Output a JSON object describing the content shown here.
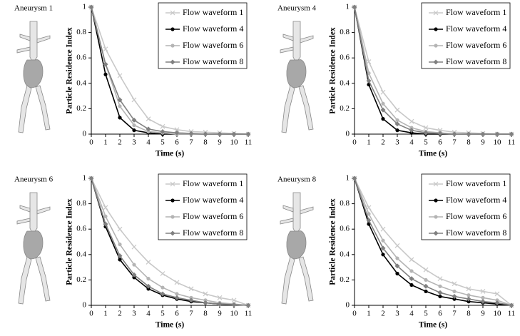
{
  "chart_data": [
    {
      "type": "line",
      "label": "Aneurysm 1",
      "xlabel": "Time (s)",
      "ylabel": "Particle Residence Index",
      "x": [
        0,
        1,
        2,
        3,
        4,
        5,
        6,
        7,
        8,
        9,
        10,
        11
      ],
      "xlim": [
        0,
        11
      ],
      "xticks": [
        0,
        1,
        2,
        3,
        4,
        5,
        6,
        7,
        8,
        9,
        10,
        11
      ],
      "ylim": [
        0,
        1
      ],
      "yticks": [
        0,
        0.2,
        0.4,
        0.6,
        0.8,
        1
      ],
      "legend": "upper right",
      "series": [
        {
          "name": "Flow waveform 1",
          "color": "#c8c8c8",
          "marker": "x",
          "values": [
            1,
            0.67,
            0.46,
            0.27,
            0.12,
            0.06,
            0.035,
            0.02,
            0.015,
            0.01,
            0.005,
            0
          ]
        },
        {
          "name": "Flow waveform 4",
          "color": "#000000",
          "marker": "circle",
          "values": [
            1,
            0.47,
            0.13,
            0.03,
            0.01,
            0,
            0,
            0,
            0,
            0,
            0,
            0
          ]
        },
        {
          "name": "Flow waveform 6",
          "color": "#b4b4b4",
          "marker": "circle",
          "values": [
            1,
            0.55,
            0.22,
            0.07,
            0.02,
            0.01,
            0,
            0,
            0,
            0,
            0,
            0
          ]
        },
        {
          "name": "Flow waveform 8",
          "color": "#808080",
          "marker": "diamond",
          "values": [
            1,
            0.55,
            0.27,
            0.11,
            0.04,
            0.02,
            0.01,
            0.005,
            0,
            0,
            0,
            0
          ]
        }
      ]
    },
    {
      "type": "line",
      "label": "Aneurysm 4",
      "xlabel": "Time (s)",
      "ylabel": "Particle Residence Index",
      "x": [
        0,
        1,
        2,
        3,
        4,
        5,
        6,
        7,
        8,
        9,
        10,
        11
      ],
      "xlim": [
        0,
        11
      ],
      "xticks": [
        0,
        1,
        2,
        3,
        4,
        5,
        6,
        7,
        8,
        9,
        10,
        11
      ],
      "ylim": [
        0,
        1
      ],
      "yticks": [
        0,
        0.2,
        0.4,
        0.6,
        0.8,
        1
      ],
      "legend": "upper right",
      "series": [
        {
          "name": "Flow waveform 1",
          "color": "#c8c8c8",
          "marker": "x",
          "values": [
            1,
            0.57,
            0.33,
            0.19,
            0.1,
            0.05,
            0.03,
            0.015,
            0.01,
            0.005,
            0,
            0
          ]
        },
        {
          "name": "Flow waveform 4",
          "color": "#000000",
          "marker": "circle",
          "values": [
            1,
            0.39,
            0.12,
            0.03,
            0.01,
            0,
            0,
            0,
            0,
            0,
            0,
            0
          ]
        },
        {
          "name": "Flow waveform 6",
          "color": "#b4b4b4",
          "marker": "circle",
          "values": [
            1,
            0.48,
            0.24,
            0.11,
            0.05,
            0.02,
            0.01,
            0,
            0,
            0,
            0,
            0
          ]
        },
        {
          "name": "Flow waveform 8",
          "color": "#808080",
          "marker": "diamond",
          "values": [
            1,
            0.42,
            0.19,
            0.08,
            0.03,
            0.01,
            0.005,
            0,
            0,
            0,
            0,
            0
          ]
        }
      ]
    },
    {
      "type": "line",
      "label": "Aneurysm 6",
      "xlabel": "Time (s)",
      "ylabel": "Particle Residence Index",
      "x": [
        0,
        1,
        2,
        3,
        4,
        5,
        6,
        7,
        8,
        9,
        10,
        11
      ],
      "xlim": [
        0,
        11
      ],
      "xticks": [
        0,
        1,
        2,
        3,
        4,
        5,
        6,
        7,
        8,
        9,
        10,
        11
      ],
      "ylim": [
        0,
        1
      ],
      "yticks": [
        0,
        0.2,
        0.4,
        0.6,
        0.8,
        1
      ],
      "legend": "upper right",
      "series": [
        {
          "name": "Flow waveform 1",
          "color": "#c8c8c8",
          "marker": "x",
          "values": [
            1,
            0.77,
            0.6,
            0.46,
            0.34,
            0.25,
            0.18,
            0.13,
            0.09,
            0.06,
            0.04,
            0
          ]
        },
        {
          "name": "Flow waveform 4",
          "color": "#000000",
          "marker": "circle",
          "values": [
            1,
            0.62,
            0.36,
            0.22,
            0.13,
            0.08,
            0.05,
            0.03,
            0.02,
            0.01,
            0.005,
            0
          ]
        },
        {
          "name": "Flow waveform 6",
          "color": "#b4b4b4",
          "marker": "circle",
          "values": [
            1,
            0.7,
            0.48,
            0.32,
            0.21,
            0.14,
            0.09,
            0.06,
            0.04,
            0.02,
            0.01,
            0
          ]
        },
        {
          "name": "Flow waveform 8",
          "color": "#808080",
          "marker": "diamond",
          "values": [
            1,
            0.64,
            0.39,
            0.24,
            0.15,
            0.09,
            0.06,
            0.04,
            0.02,
            0.01,
            0.005,
            0
          ]
        }
      ]
    },
    {
      "type": "line",
      "label": "Aneurysm 8",
      "xlabel": "Time (s)",
      "ylabel": "Particle Residence Index",
      "x": [
        0,
        1,
        2,
        3,
        4,
        5,
        6,
        7,
        8,
        9,
        10,
        11
      ],
      "xlim": [
        0,
        11
      ],
      "xticks": [
        0,
        1,
        2,
        3,
        4,
        5,
        6,
        7,
        8,
        9,
        10,
        11
      ],
      "ylim": [
        0,
        1
      ],
      "yticks": [
        0,
        0.2,
        0.4,
        0.6,
        0.8,
        1
      ],
      "legend": "upper right",
      "series": [
        {
          "name": "Flow waveform 1",
          "color": "#c8c8c8",
          "marker": "x",
          "values": [
            1,
            0.77,
            0.6,
            0.47,
            0.36,
            0.28,
            0.21,
            0.17,
            0.13,
            0.11,
            0.09,
            0
          ]
        },
        {
          "name": "Flow waveform 4",
          "color": "#000000",
          "marker": "circle",
          "values": [
            1,
            0.64,
            0.4,
            0.25,
            0.16,
            0.11,
            0.07,
            0.05,
            0.03,
            0.02,
            0.01,
            0
          ]
        },
        {
          "name": "Flow waveform 6",
          "color": "#b4b4b4",
          "marker": "circle",
          "values": [
            1,
            0.72,
            0.51,
            0.37,
            0.27,
            0.2,
            0.15,
            0.11,
            0.08,
            0.06,
            0.04,
            0
          ]
        },
        {
          "name": "Flow waveform 8",
          "color": "#808080",
          "marker": "diamond",
          "values": [
            1,
            0.67,
            0.45,
            0.31,
            0.21,
            0.15,
            0.1,
            0.07,
            0.05,
            0.03,
            0.02,
            0
          ]
        }
      ]
    }
  ]
}
